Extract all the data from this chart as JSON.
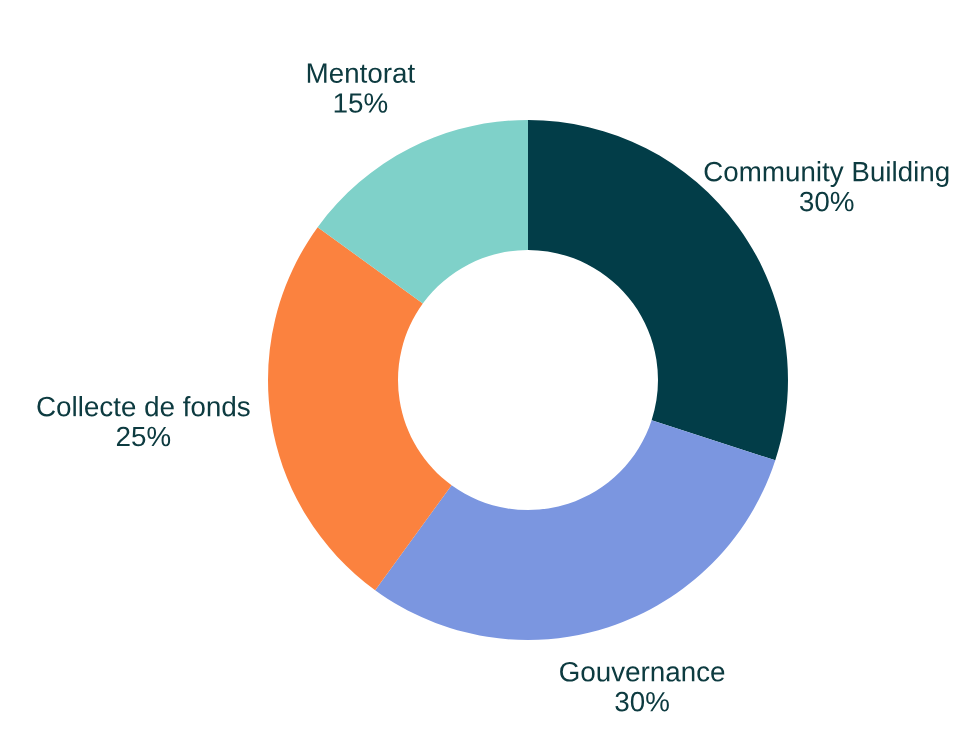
{
  "chart_data": {
    "type": "donut",
    "categories": [
      "Community Building",
      "Gouvernance",
      "Collecte de fonds",
      "Mentorat"
    ],
    "values": [
      30,
      30,
      25,
      15
    ],
    "colors": [
      "#023d48",
      "#7b96e0",
      "#fb823f",
      "#7fd1c9"
    ],
    "value_labels": [
      "30%",
      "30%",
      "25%",
      "15%"
    ]
  }
}
